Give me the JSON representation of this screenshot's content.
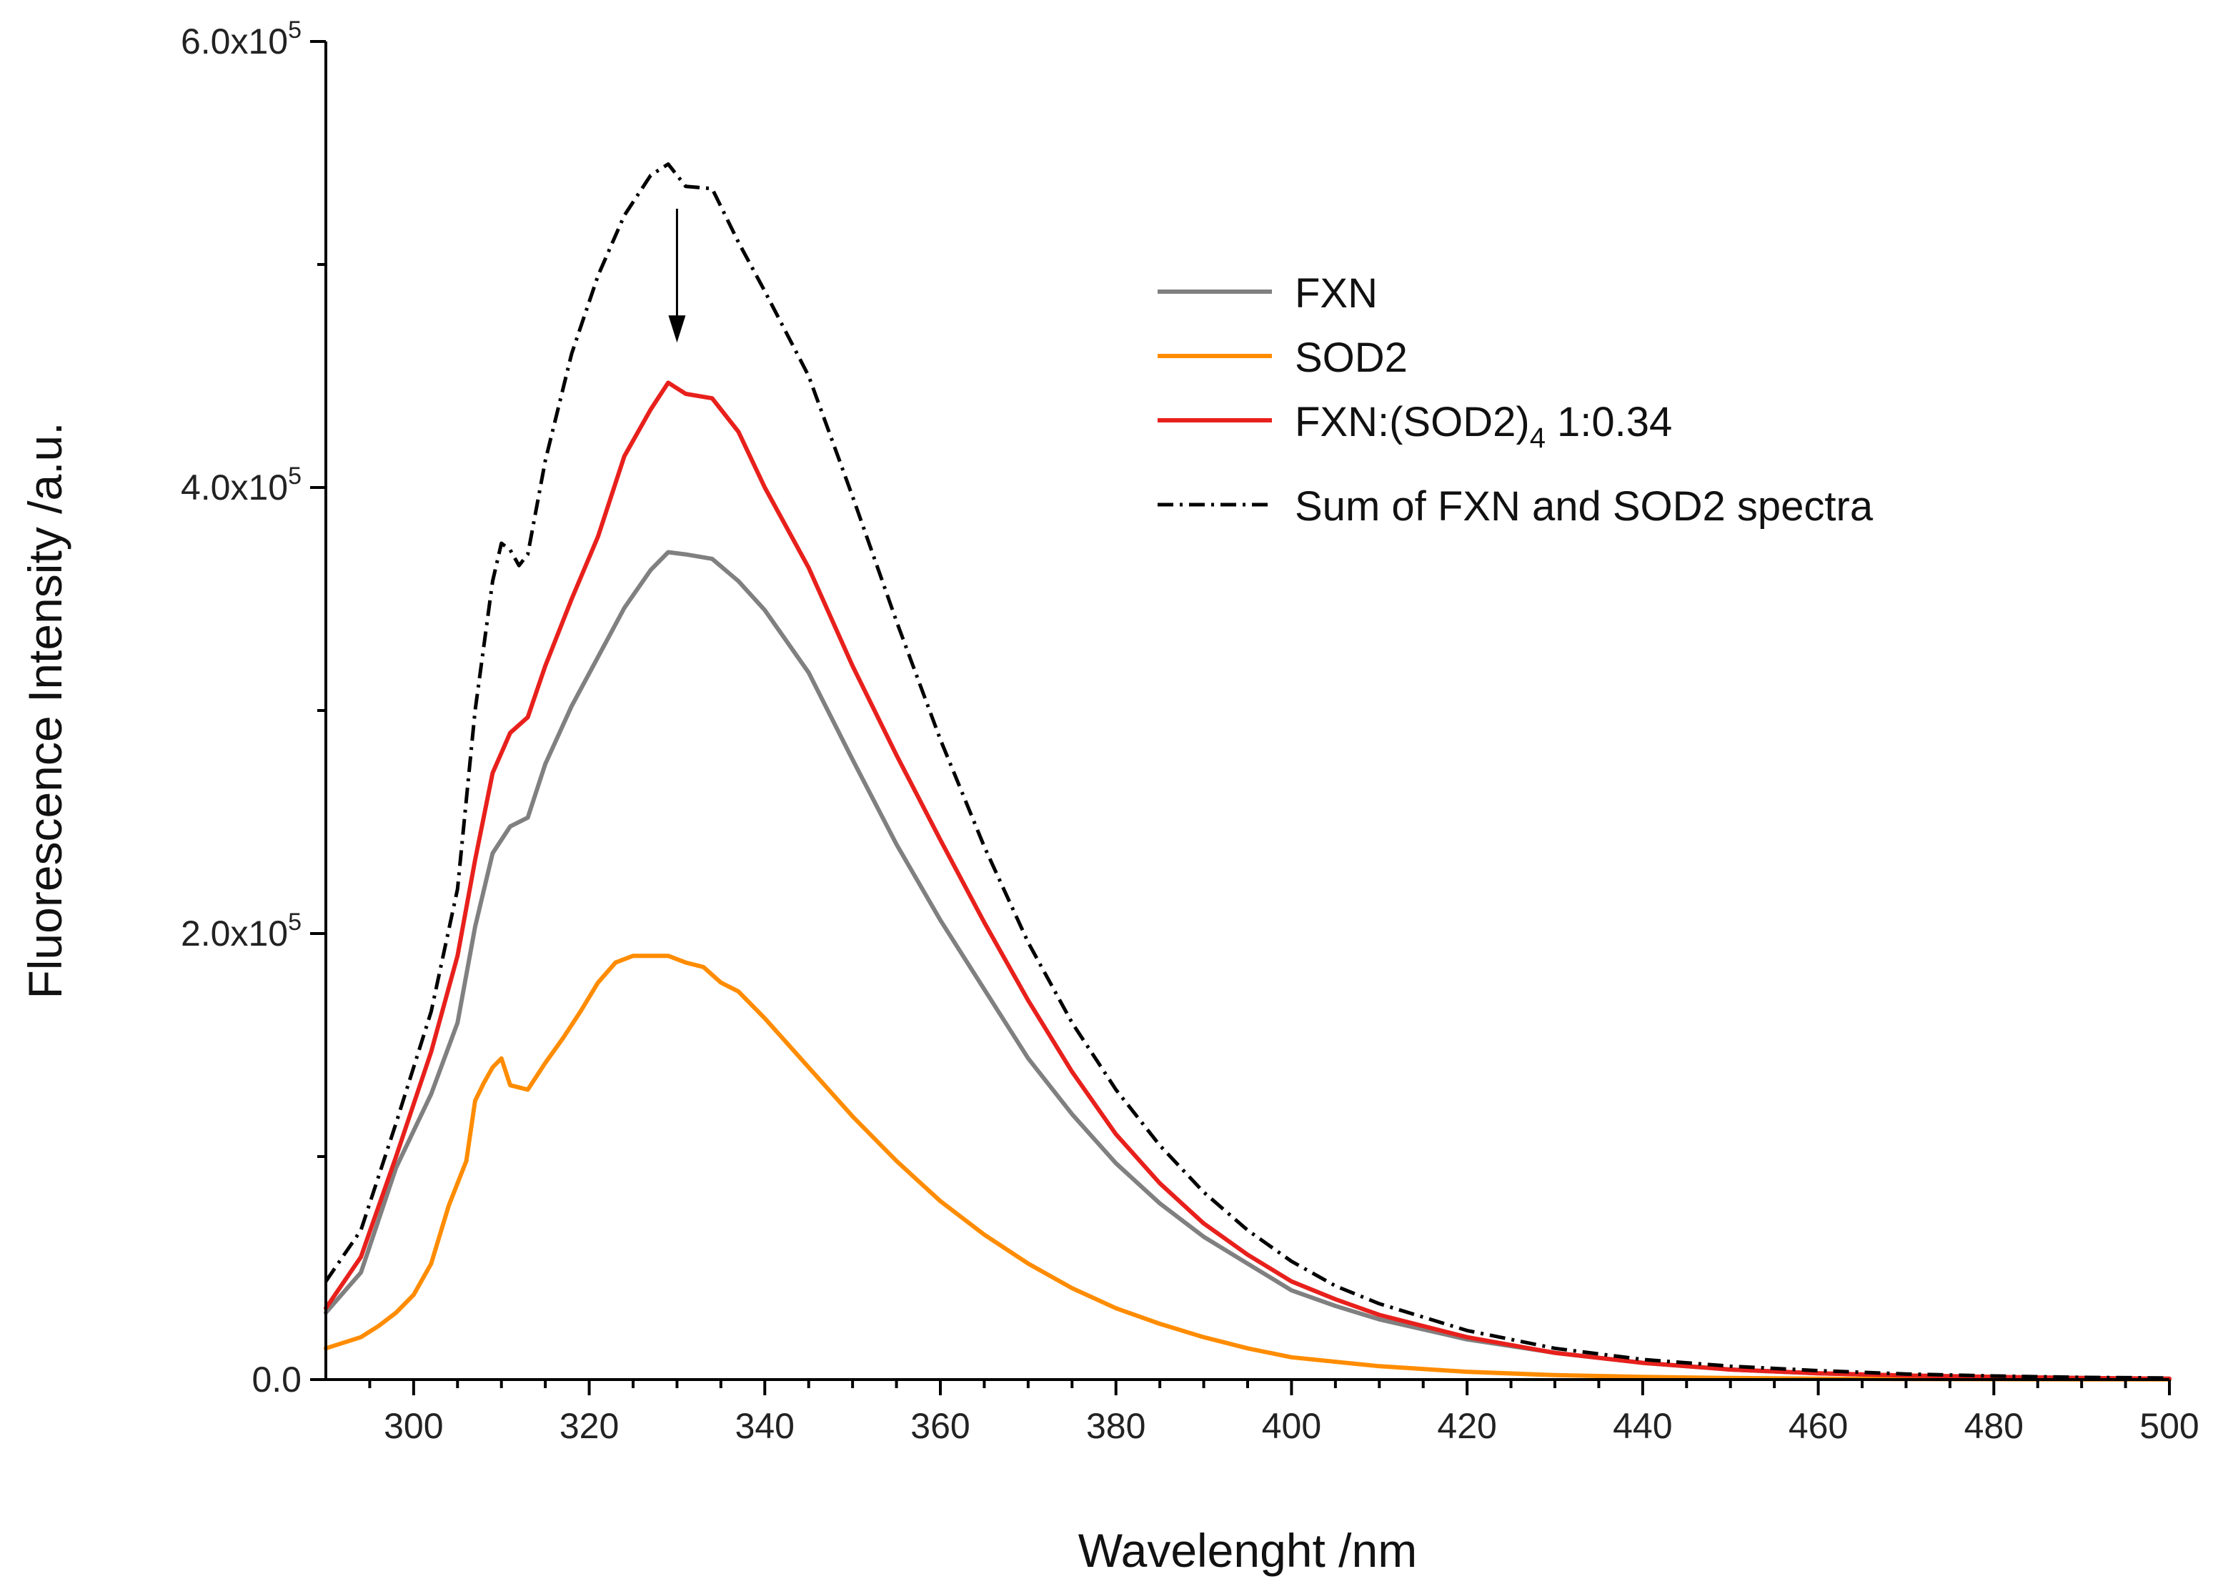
{
  "chart_data": {
    "type": "line",
    "title": "",
    "xlabel": "Wavelenght /nm",
    "ylabel": "Fluorescence Intensity /a.u.",
    "xlim": [
      290,
      500
    ],
    "ylim": [
      0,
      600000
    ],
    "x_ticks": [
      300,
      320,
      340,
      360,
      380,
      400,
      420,
      440,
      460,
      480,
      500
    ],
    "x_tick_labels": [
      "300",
      "320",
      "340",
      "360",
      "380",
      "400",
      "420",
      "440",
      "460",
      "480",
      "500"
    ],
    "y_ticks": [
      0,
      200000,
      400000,
      600000
    ],
    "y_tick_labels": [
      {
        "mantissa": "0.0",
        "exp": ""
      },
      {
        "mantissa": "2.0x10",
        "exp": "5"
      },
      {
        "mantissa": "4.0x10",
        "exp": "5"
      },
      {
        "mantissa": "6.0x10",
        "exp": "5"
      }
    ],
    "legend_position": "upper-right",
    "legend_labels": {
      "fxn": "FXN",
      "sod2": "SOD2",
      "complex_main": "FXN:(SOD2)",
      "complex_sub": "4",
      "complex_tail": " 1:0.34",
      "sum": "Sum of FXN and SOD2 spectra"
    },
    "annotation": {
      "type": "arrow-down",
      "x": 330,
      "y_start": 525000,
      "y_end": 465000
    },
    "series": [
      {
        "key": "fxn",
        "name": "FXN",
        "color": "#808080",
        "dash": "solid",
        "x": [
          290,
          294,
          298,
          302,
          305,
          307,
          309,
          311,
          313,
          315,
          318,
          321,
          324,
          327,
          329,
          331,
          334,
          337,
          340,
          345,
          350,
          355,
          360,
          365,
          370,
          375,
          380,
          385,
          390,
          395,
          400,
          405,
          410,
          420,
          430,
          440,
          450,
          460,
          470,
          480,
          490,
          500
        ],
        "values": [
          30000,
          48000,
          95000,
          128000,
          160000,
          203000,
          236000,
          248000,
          252000,
          276000,
          302000,
          324000,
          346000,
          363000,
          371000,
          370000,
          368000,
          358000,
          345000,
          317000,
          278000,
          240000,
          206000,
          175000,
          144000,
          119000,
          97000,
          79000,
          64000,
          52000,
          40000,
          33000,
          27000,
          18000,
          12000,
          7500,
          4500,
          2800,
          1800,
          1200,
          700,
          400
        ]
      },
      {
        "key": "sod2",
        "name": "SOD2",
        "color": "#FF8C00",
        "dash": "solid",
        "x": [
          290,
          294,
          296,
          298,
          300,
          302,
          304,
          306,
          307,
          308,
          309,
          310,
          311,
          312,
          313,
          315,
          317,
          319,
          321,
          323,
          325,
          327,
          329,
          331,
          333,
          335,
          337,
          340,
          345,
          350,
          355,
          360,
          365,
          370,
          375,
          380,
          385,
          390,
          395,
          400,
          410,
          420,
          430,
          440,
          450,
          460,
          470,
          480,
          490,
          500
        ],
        "values": [
          14000,
          19000,
          24000,
          30000,
          38000,
          52000,
          78000,
          98000,
          125000,
          133000,
          140000,
          144000,
          132000,
          131000,
          130000,
          142000,
          153000,
          165000,
          178000,
          187000,
          190000,
          190000,
          190000,
          187000,
          185000,
          178000,
          174000,
          162000,
          140000,
          118000,
          98000,
          80000,
          65000,
          52000,
          41000,
          32000,
          25000,
          19000,
          14000,
          10000,
          6000,
          3500,
          2000,
          1200,
          700,
          400,
          250,
          150,
          80,
          50
        ]
      },
      {
        "key": "complex",
        "name": "FXN:(SOD2)4 1:0.34",
        "color": "#E8201C",
        "dash": "solid",
        "x": [
          290,
          294,
          298,
          302,
          305,
          307,
          309,
          311,
          313,
          315,
          318,
          321,
          324,
          327,
          329,
          331,
          334,
          337,
          340,
          345,
          350,
          355,
          360,
          365,
          370,
          375,
          380,
          385,
          390,
          395,
          400,
          405,
          410,
          420,
          430,
          440,
          450,
          460,
          470,
          480,
          490,
          500
        ],
        "values": [
          32000,
          55000,
          100000,
          147000,
          190000,
          233000,
          272000,
          290000,
          297000,
          320000,
          350000,
          378000,
          414000,
          435000,
          447000,
          442000,
          440000,
          425000,
          400000,
          364000,
          320000,
          280000,
          242000,
          205000,
          170000,
          138000,
          110000,
          88000,
          70000,
          56000,
          44000,
          36000,
          29000,
          19000,
          12000,
          7500,
          4500,
          2800,
          1800,
          1200,
          700,
          400
        ]
      },
      {
        "key": "sum",
        "name": "Sum of FXN and SOD2 spectra",
        "color": "#000000",
        "dash": "dashdot",
        "x": [
          290,
          294,
          298,
          302,
          305,
          307,
          309,
          310,
          311,
          312,
          313,
          315,
          318,
          321,
          324,
          327,
          329,
          331,
          334,
          337,
          340,
          345,
          350,
          355,
          360,
          365,
          370,
          375,
          380,
          385,
          390,
          395,
          400,
          405,
          410,
          420,
          430,
          440,
          450,
          460,
          470,
          480,
          490,
          500
        ],
        "values": [
          44000,
          67000,
          115000,
          165000,
          220000,
          300000,
          358000,
          375000,
          372000,
          365000,
          370000,
          412000,
          460000,
          495000,
          522000,
          540000,
          545000,
          535000,
          534000,
          510000,
          488000,
          450000,
          396000,
          340000,
          287000,
          239000,
          196000,
          160000,
          130000,
          105000,
          84000,
          67000,
          53000,
          42000,
          34000,
          22000,
          14000,
          9000,
          6000,
          4000,
          2500,
          1600,
          1000,
          700
        ]
      }
    ]
  }
}
